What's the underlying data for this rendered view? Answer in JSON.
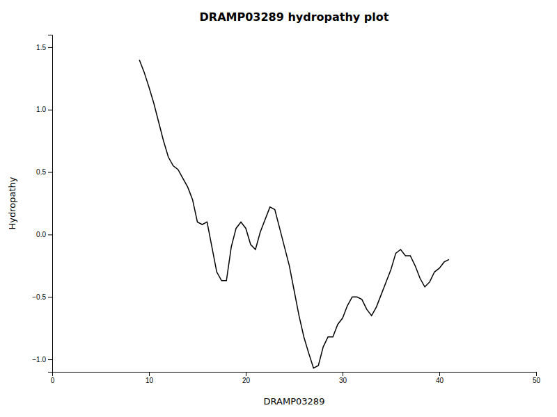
{
  "chart_data": {
    "type": "line",
    "title": "DRAMP03289 hydropathy plot",
    "xlabel": "DRAMP03289",
    "ylabel": "Hydropathy",
    "xlim": [
      0,
      50
    ],
    "ylim": [
      -1.1,
      1.6
    ],
    "xticks": [
      0,
      10,
      20,
      30,
      40,
      50
    ],
    "yticks": [
      {
        "value": -1.0,
        "label": "−1.0"
      },
      {
        "value": -0.5,
        "label": "−0.5"
      },
      {
        "value": 0.0,
        "label": "0.0"
      },
      0.5,
      {
        "value": 1.0,
        "label": "1.0"
      },
      1.5
    ],
    "color": "#000000",
    "x": [
      9.0,
      9.5,
      10.0,
      10.5,
      11.0,
      11.5,
      12.0,
      12.5,
      13.0,
      13.5,
      14.0,
      14.5,
      15.0,
      15.5,
      16.0,
      16.5,
      17.0,
      17.5,
      18.0,
      18.5,
      19.0,
      19.5,
      20.0,
      20.5,
      21.0,
      21.5,
      22.0,
      22.5,
      23.0,
      23.5,
      24.0,
      24.5,
      25.0,
      25.5,
      26.0,
      26.5,
      27.0,
      27.5,
      28.0,
      28.5,
      29.0,
      29.5,
      30.0,
      30.5,
      31.0,
      31.5,
      32.0,
      32.5,
      33.0,
      33.5,
      34.0,
      34.5,
      35.0,
      35.5,
      36.0,
      36.5,
      37.0,
      37.5,
      38.0,
      38.5,
      39.0,
      39.5,
      40.0,
      40.5,
      41.0
    ],
    "values": [
      1.4,
      1.3,
      1.18,
      1.05,
      0.9,
      0.75,
      0.62,
      0.55,
      0.52,
      0.45,
      0.38,
      0.28,
      0.1,
      0.08,
      0.1,
      -0.1,
      -0.3,
      -0.37,
      -0.37,
      -0.1,
      0.05,
      0.1,
      0.05,
      -0.08,
      -0.12,
      0.02,
      0.12,
      0.22,
      0.2,
      0.05,
      -0.1,
      -0.25,
      -0.45,
      -0.65,
      -0.82,
      -0.95,
      -1.07,
      -1.05,
      -0.9,
      -0.82,
      -0.82,
      -0.72,
      -0.67,
      -0.57,
      -0.5,
      -0.5,
      -0.52,
      -0.6,
      -0.65,
      -0.58,
      -0.48,
      -0.38,
      -0.28,
      -0.15,
      -0.12,
      -0.17,
      -0.17,
      -0.25,
      -0.35,
      -0.42,
      -0.38,
      -0.3,
      -0.27,
      -0.22,
      -0.2
    ]
  }
}
